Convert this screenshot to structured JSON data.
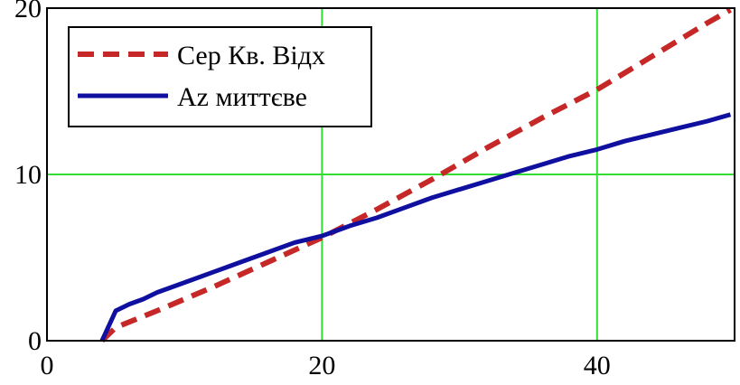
{
  "chart_data": {
    "type": "line",
    "title": "",
    "xlabel": "",
    "ylabel": "",
    "xlim": [
      0,
      50
    ],
    "ylim": [
      0,
      20
    ],
    "grid": true,
    "legend_position": "top-left",
    "x_ticks": [
      "0",
      "20",
      "40"
    ],
    "y_ticks": [
      "0",
      "10",
      "20"
    ],
    "colors": {
      "grid": "#33dd33",
      "axes": "#000000"
    },
    "series": [
      {
        "name": "Сер Кв. Відх",
        "color": "#c62828",
        "dash": true,
        "x": [
          4,
          5,
          8,
          12,
          16,
          20,
          24,
          28,
          32,
          36,
          40,
          44,
          48,
          49.7
        ],
        "y": [
          0,
          0.8,
          1.8,
          3.2,
          4.7,
          6.2,
          7.9,
          9.7,
          11.6,
          13.4,
          15.1,
          17.1,
          19.1,
          19.9
        ]
      },
      {
        "name": "Az миттєве",
        "color": "#1010a0",
        "dash": false,
        "x": [
          4,
          5,
          6,
          7,
          8,
          10,
          12,
          14,
          16,
          18,
          20,
          22,
          24,
          26,
          28,
          30,
          32,
          34,
          36,
          38,
          40,
          42,
          44,
          46,
          48,
          49.7
        ],
        "y": [
          0,
          1.8,
          2.2,
          2.5,
          2.9,
          3.5,
          4.1,
          4.7,
          5.3,
          5.9,
          6.3,
          6.9,
          7.4,
          8.0,
          8.6,
          9.1,
          9.6,
          10.1,
          10.6,
          11.1,
          11.5,
          12.0,
          12.4,
          12.8,
          13.2,
          13.6
        ]
      }
    ]
  }
}
